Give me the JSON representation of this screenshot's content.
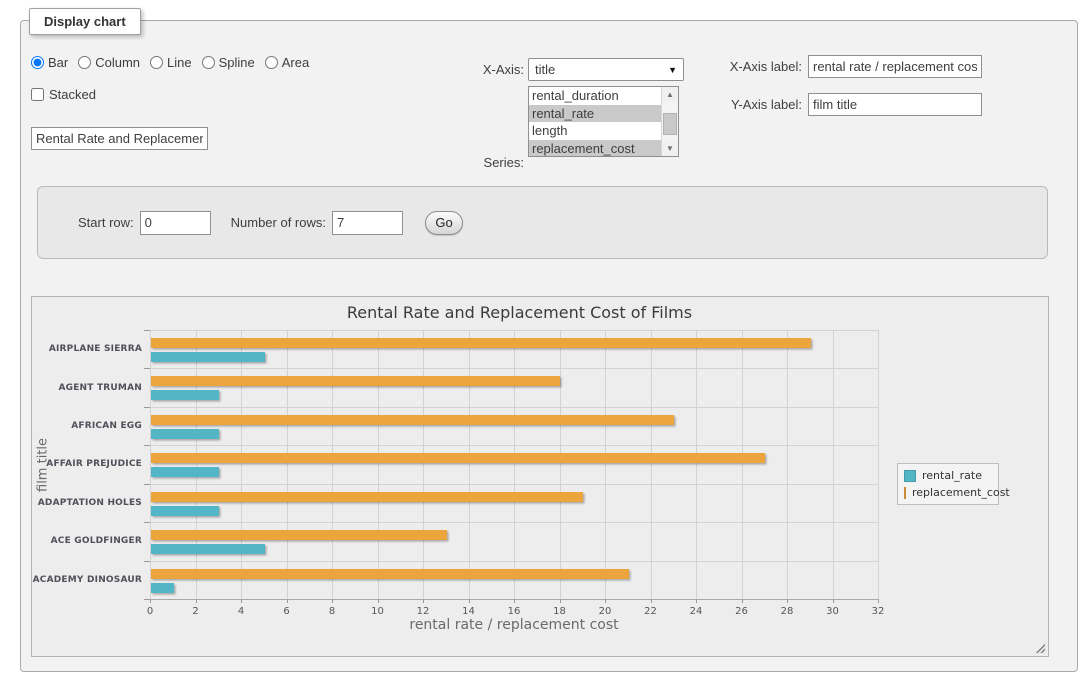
{
  "panel": {
    "legend": "Display chart"
  },
  "controls": {
    "chart_types": [
      {
        "label": "Bar",
        "selected": true
      },
      {
        "label": "Column",
        "selected": false
      },
      {
        "label": "Line",
        "selected": false
      },
      {
        "label": "Spline",
        "selected": false
      },
      {
        "label": "Area",
        "selected": false
      }
    ],
    "stacked": {
      "label": "Stacked",
      "checked": false
    },
    "chart_title_input": {
      "value": "Rental Rate and Replacement Cost of Films"
    },
    "x_axis": {
      "label": "X-Axis:",
      "selected": "title"
    },
    "series_select": {
      "label": "Series:",
      "options": [
        {
          "label": "rental_duration",
          "selected": false
        },
        {
          "label": "rental_rate",
          "selected": true
        },
        {
          "label": "length",
          "selected": false
        },
        {
          "label": "replacement_cost",
          "selected": true
        }
      ]
    },
    "x_axis_label": {
      "label": "X-Axis label:",
      "value": "rental rate / replacement cost"
    },
    "y_axis_label": {
      "label": "Y-Axis label:",
      "value": "film title"
    }
  },
  "row_controls": {
    "start_row_label": "Start row:",
    "start_row_value": "0",
    "num_rows_label": "Number of rows:",
    "num_rows_value": "7",
    "go_label": "Go"
  },
  "chart_data": {
    "type": "bar",
    "title": "Rental Rate and Replacement Cost of Films",
    "categories": [
      "AIRPLANE SIERRA",
      "AGENT TRUMAN",
      "AFRICAN EGG",
      "AFFAIR PREJUDICE",
      "ADAPTATION HOLES",
      "ACE GOLDFINGER",
      "ACADEMY DINOSAUR"
    ],
    "series": [
      {
        "name": "rental_rate",
        "color": "#52b6c6",
        "values": [
          4.99,
          2.99,
          2.99,
          2.99,
          2.99,
          4.99,
          0.99
        ]
      },
      {
        "name": "replacement_cost",
        "color": "#eca43d",
        "values": [
          28.99,
          17.99,
          22.99,
          26.99,
          18.99,
          12.99,
          20.99
        ]
      }
    ],
    "bar_order": [
      "replacement_cost",
      "rental_rate"
    ],
    "xlabel": "rental rate / replacement cost",
    "ylabel": "film title",
    "xlim": [
      0,
      32
    ],
    "xtick_step": 2,
    "grid": true,
    "legend_position": "right"
  }
}
